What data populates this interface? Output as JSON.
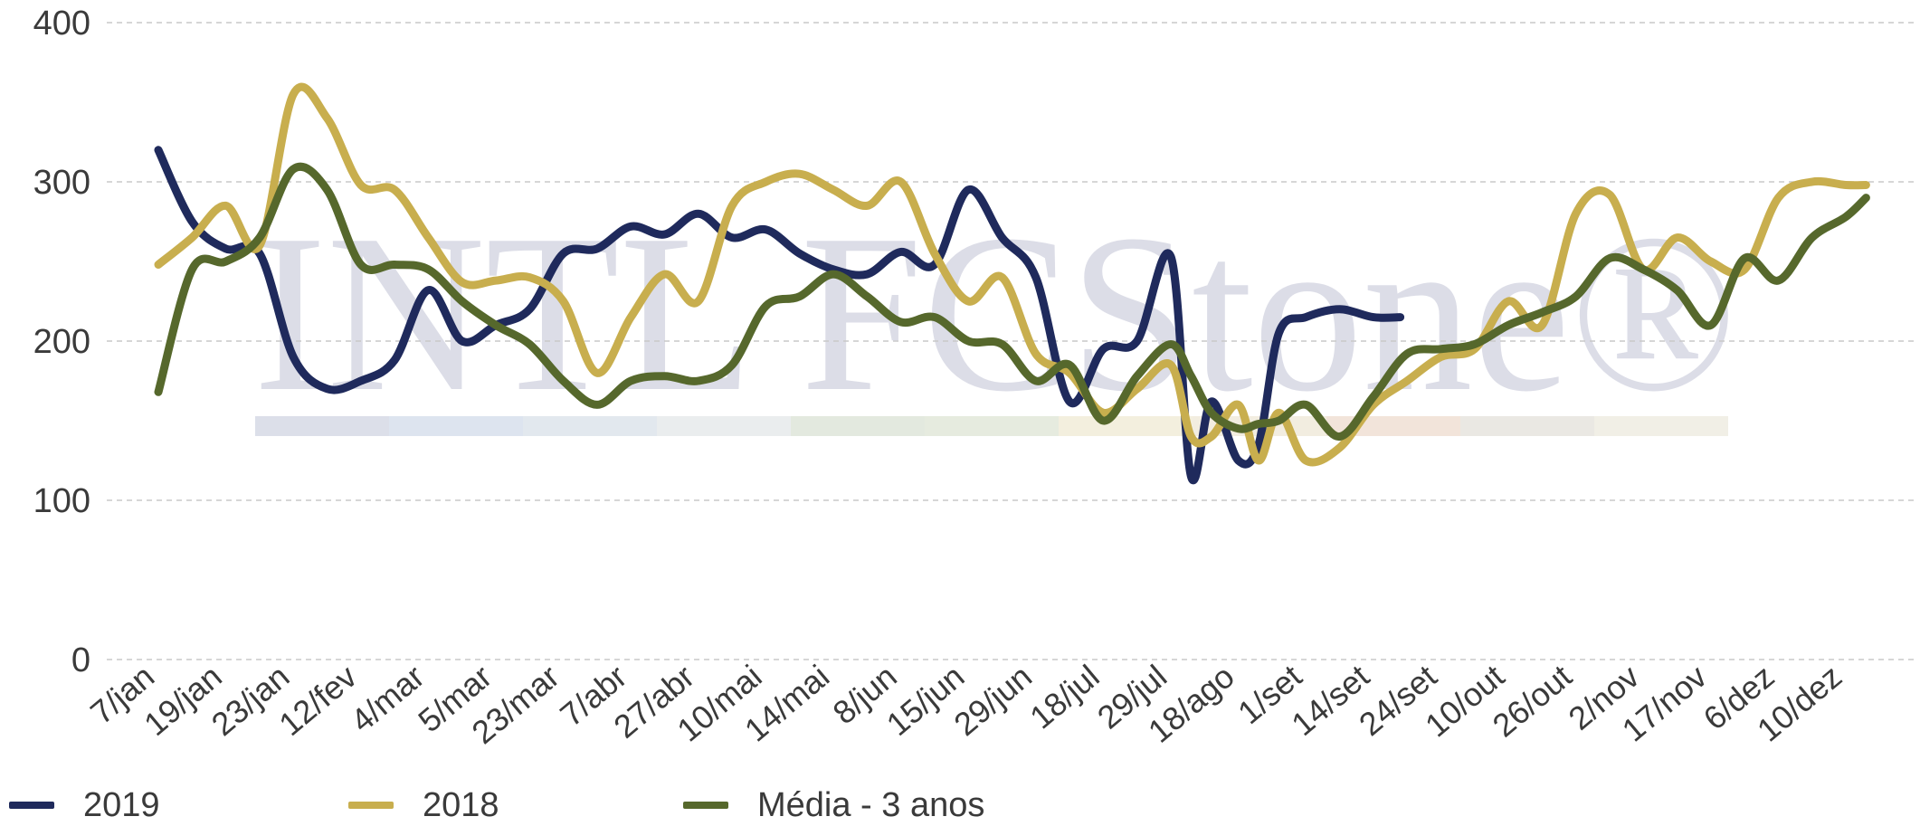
{
  "chart_data": {
    "type": "line",
    "watermark": "INTL FCStone®",
    "ylim": [
      0,
      400
    ],
    "yticks": [
      0,
      100,
      200,
      300,
      400
    ],
    "grid": "horizontal dashed",
    "legend_position": "bottom-left",
    "x_tick_labels": [
      "7/jan",
      "19/jan",
      "23/jan",
      "12/fev",
      "4/mar",
      "5/mar",
      "23/mar",
      "7/abr",
      "27/abr",
      "10/mai",
      "14/mai",
      "8/jun",
      "15/jun",
      "29/jun",
      "18/jul",
      "29/jul",
      "18/ago",
      "1/set",
      "14/set",
      "24/set",
      "10/out",
      "26/out",
      "2/nov",
      "17/nov",
      "6/dez",
      "10/dez"
    ],
    "series": [
      {
        "name": "2019",
        "color": "#1f2a5c",
        "x": [
          0.0,
          0.5,
          1.0,
          1.5,
          2.0,
          2.5,
          3.0,
          3.5,
          4.0,
          4.5,
          5.0,
          5.5,
          6.0,
          6.5,
          7.0,
          7.5,
          8.0,
          8.5,
          9.0,
          9.5,
          10.0,
          10.5,
          11.0,
          11.5,
          12.0,
          12.5,
          13.0,
          13.5,
          14.0,
          14.5,
          15.0,
          15.3,
          15.6,
          16.0,
          16.3,
          16.6,
          17.0,
          17.5,
          18.0,
          18.4
        ],
        "values": [
          320,
          275,
          258,
          255,
          190,
          170,
          175,
          188,
          232,
          200,
          210,
          220,
          255,
          258,
          272,
          267,
          280,
          265,
          270,
          255,
          245,
          242,
          256,
          248,
          295,
          265,
          240,
          162,
          195,
          200,
          253,
          115,
          162,
          125,
          135,
          205,
          215,
          220,
          215,
          215
        ]
      },
      {
        "name": "2018",
        "color": "#c8ae4e",
        "x": [
          0.0,
          0.5,
          1.0,
          1.5,
          2.0,
          2.5,
          3.0,
          3.5,
          4.0,
          4.5,
          5.0,
          5.5,
          6.0,
          6.5,
          7.0,
          7.5,
          8.0,
          8.5,
          9.0,
          9.5,
          10.0,
          10.5,
          11.0,
          11.5,
          12.0,
          12.5,
          13.0,
          13.5,
          14.0,
          14.5,
          15.0,
          15.3,
          15.6,
          16.0,
          16.3,
          16.6,
          17.0,
          17.5,
          18.0,
          18.5,
          19.0,
          19.5,
          20.0,
          20.5,
          21.0,
          21.5,
          22.0,
          22.5,
          23.0,
          23.5,
          24.0,
          24.5,
          25.0,
          25.3
        ],
        "values": [
          248,
          265,
          285,
          260,
          355,
          340,
          298,
          295,
          265,
          237,
          238,
          240,
          225,
          180,
          215,
          242,
          225,
          285,
          300,
          305,
          295,
          285,
          300,
          255,
          225,
          240,
          192,
          180,
          155,
          170,
          185,
          140,
          140,
          160,
          125,
          155,
          125,
          133,
          160,
          175,
          190,
          195,
          225,
          210,
          280,
          292,
          245,
          265,
          250,
          245,
          290,
          300,
          298,
          298
        ]
      },
      {
        "name": "Média - 3 anos",
        "color": "#56682c",
        "x": [
          0.0,
          0.5,
          1.0,
          1.5,
          2.0,
          2.5,
          3.0,
          3.5,
          4.0,
          4.5,
          5.0,
          5.5,
          6.0,
          6.5,
          7.0,
          7.5,
          8.0,
          8.5,
          9.0,
          9.5,
          10.0,
          10.5,
          11.0,
          11.5,
          12.0,
          12.5,
          13.0,
          13.5,
          14.0,
          14.5,
          15.0,
          15.3,
          15.6,
          16.0,
          16.3,
          16.6,
          17.0,
          17.5,
          18.0,
          18.5,
          19.0,
          19.5,
          20.0,
          20.5,
          21.0,
          21.5,
          22.0,
          22.5,
          23.0,
          23.5,
          24.0,
          24.5,
          25.0,
          25.3
        ],
        "values": [
          168,
          245,
          250,
          265,
          308,
          295,
          248,
          248,
          245,
          225,
          210,
          198,
          175,
          160,
          175,
          178,
          175,
          185,
          222,
          228,
          242,
          228,
          212,
          215,
          200,
          198,
          175,
          185,
          150,
          178,
          198,
          178,
          155,
          145,
          148,
          150,
          160,
          140,
          165,
          192,
          195,
          198,
          210,
          218,
          228,
          252,
          245,
          232,
          210,
          252,
          238,
          265,
          278,
          290
        ]
      }
    ]
  }
}
